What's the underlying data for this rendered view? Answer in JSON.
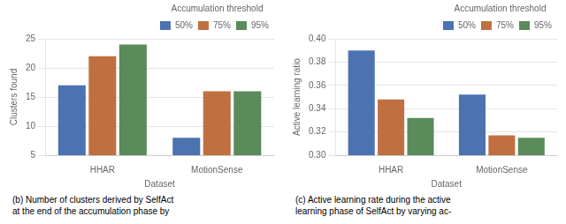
{
  "chart_data": [
    {
      "type": "bar",
      "xlabel": "Dataset",
      "ylabel": "Clusters found",
      "categories": [
        "HHAR",
        "MotionSense"
      ],
      "series": [
        {
          "name": "50%",
          "color": "#4C72B0",
          "values": [
            17,
            8
          ]
        },
        {
          "name": "75%",
          "color": "#C07040",
          "values": [
            22,
            16
          ]
        },
        {
          "name": "95%",
          "color": "#5B8A5B",
          "values": [
            24,
            16
          ]
        }
      ],
      "ylim": [
        5,
        25
      ],
      "yticks": [
        5,
        10,
        15,
        20,
        25
      ],
      "grid": true,
      "legend": "upper right",
      "legend_title": "Accumulation threshold",
      "annotations": [
        "(b) Number of clusters derived by SelfAct",
        "at the end of the accumulation phase by"
      ]
    },
    {
      "type": "bar",
      "xlabel": "Dataset",
      "ylabel": "Active learning ratio",
      "categories": [
        "HHAR",
        "MotionSense"
      ],
      "series": [
        {
          "name": "50%",
          "color": "#4C72B0",
          "values": [
            0.39,
            0.352
          ]
        },
        {
          "name": "75%",
          "color": "#C07040",
          "values": [
            0.348,
            0.317
          ]
        },
        {
          "name": "95%",
          "color": "#5B8A5B",
          "values": [
            0.332,
            0.315
          ]
        }
      ],
      "ylim": [
        0.3,
        0.4
      ],
      "yticks": [
        {
          "value": 0.3,
          "label": "0.30"
        },
        {
          "value": 0.32,
          "label": "0.32"
        },
        {
          "value": 0.34,
          "label": "0.34"
        },
        {
          "value": 0.36,
          "label": "0.36"
        },
        {
          "value": 0.38,
          "label": "0.38"
        },
        {
          "value": 0.4,
          "label": "0.40"
        }
      ],
      "grid": true,
      "legend": "upper right",
      "legend_title": "Accumulation threshold",
      "annotations": [
        "(c) Active learning rate during the active",
        "learning phase of SelfAct by varying ac-"
      ]
    }
  ]
}
